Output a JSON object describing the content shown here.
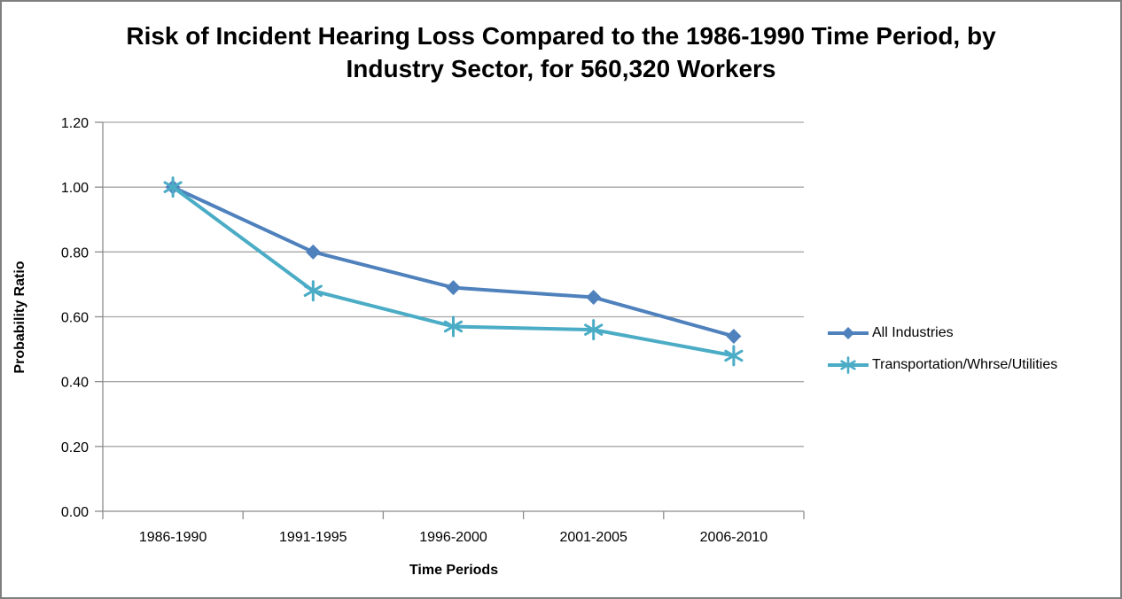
{
  "window": {
    "background_color": "#ffffff",
    "border_color": "#7f7f7f"
  },
  "chart_data": {
    "type": "line",
    "title": "Risk of Incident Hearing Loss Compared to the 1986-1990 Time Period, by Industry Sector, for 560,320 Workers",
    "xlabel": "Time Periods",
    "ylabel": "Probability Ratio",
    "categories": [
      "1986-1990",
      "1991-1995",
      "1996-2000",
      "2001-2005",
      "2006-2010"
    ],
    "series": [
      {
        "name": "All Industries",
        "values": [
          1.0,
          0.8,
          0.69,
          0.66,
          0.54
        ],
        "color": "#4F81BD",
        "marker": "diamond"
      },
      {
        "name": "Transportation/Whrse/Utilities",
        "values": [
          1.0,
          0.68,
          0.57,
          0.56,
          0.48
        ],
        "color": "#4BACC6",
        "marker": "asterisk"
      }
    ],
    "ylim": [
      0,
      1.2
    ],
    "ytick_step": 0.2,
    "ytick_labels": [
      "0.00",
      "0.20",
      "0.40",
      "0.60",
      "0.80",
      "1.00",
      "1.20"
    ],
    "grid": true,
    "gridline_color": "#A6A6A6",
    "axis_color": "#8C8C8C",
    "legend_position": "right"
  }
}
